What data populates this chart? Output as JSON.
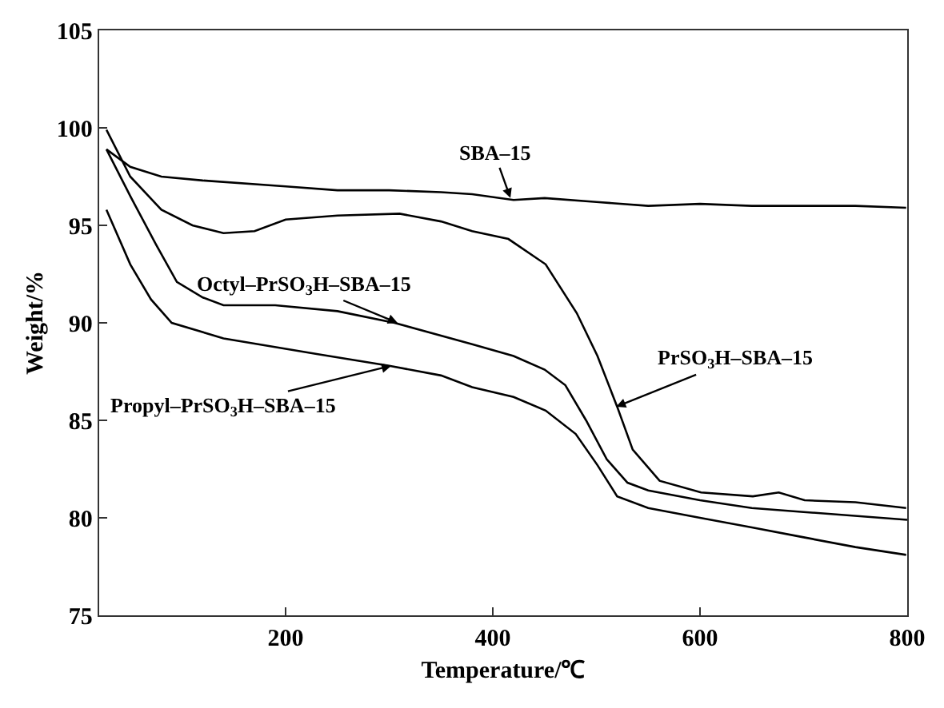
{
  "chart_data": {
    "type": "line",
    "xlabel": "Temperature/℃",
    "ylabel": "Weight/%",
    "xlim": [
      20,
      800
    ],
    "xticks": [
      200,
      400,
      600,
      800
    ],
    "ylim": [
      75,
      105
    ],
    "yticks": [
      75,
      80,
      85,
      90,
      95,
      100,
      105
    ],
    "grid": false,
    "marker": "none",
    "line_style": "solid",
    "series": [
      {
        "color": "#000000",
        "x": [
          27,
          50,
          80,
          120,
          200,
          250,
          300,
          350,
          380,
          420,
          450,
          500,
          550,
          600,
          650,
          700,
          750,
          799
        ],
        "values": [
          98.9,
          98.0,
          97.5,
          97.3,
          97.0,
          96.8,
          96.8,
          96.7,
          96.6,
          96.3,
          96.4,
          96.2,
          96.0,
          96.1,
          96.0,
          96.0,
          96.0,
          95.9
        ]
      },
      {
        "color": "#000000",
        "x": [
          27,
          50,
          80,
          110,
          140,
          170,
          200,
          250,
          310,
          350,
          380,
          415,
          451,
          481,
          501,
          520,
          535,
          561,
          601,
          651,
          676,
          701,
          750,
          799
        ],
        "values": [
          99.9,
          97.5,
          95.8,
          95.0,
          94.6,
          94.7,
          95.3,
          95.5,
          95.6,
          95.2,
          94.7,
          94.3,
          93.0,
          90.5,
          88.3,
          85.7,
          83.5,
          81.9,
          81.3,
          81.1,
          81.3,
          80.9,
          80.8,
          80.5
        ]
      },
      {
        "color": "#000000",
        "x": [
          27,
          50,
          75,
          95,
          120,
          140,
          190,
          250,
          305,
          380,
          420,
          450,
          470,
          490,
          510,
          530,
          550,
          600,
          650,
          700,
          800
        ],
        "values": [
          98.9,
          96.5,
          94.0,
          92.1,
          91.3,
          90.9,
          90.9,
          90.6,
          90.0,
          88.9,
          88.3,
          87.6,
          86.8,
          85.0,
          83.0,
          81.8,
          81.4,
          80.9,
          80.5,
          80.3,
          79.9
        ]
      },
      {
        "color": "#000000",
        "x": [
          27,
          50,
          70,
          90,
          140,
          230,
          300,
          350,
          380,
          420,
          451,
          480,
          501,
          520,
          550,
          600,
          651,
          700,
          750,
          799
        ],
        "values": [
          95.8,
          93.0,
          91.2,
          90.0,
          89.2,
          88.4,
          87.8,
          87.3,
          86.7,
          86.2,
          85.5,
          84.3,
          82.7,
          81.1,
          80.5,
          80.0,
          79.5,
          79.0,
          78.5,
          78.1
        ]
      }
    ],
    "annotations": [
      {
        "text": "SBA–15",
        "x": 417,
        "y": 96.4
      },
      {
        "text": "Octyl–PrSO$_{3}$H–SBA–15",
        "x": 308,
        "y": 90.0
      },
      {
        "text": "PrSO$_{3}$H–SBA–15",
        "x": 519,
        "y": 85.7
      },
      {
        "text": "Propyl–PrSO$_{3}$H–SBA–15",
        "x": 302,
        "y": 87.8
      }
    ]
  }
}
